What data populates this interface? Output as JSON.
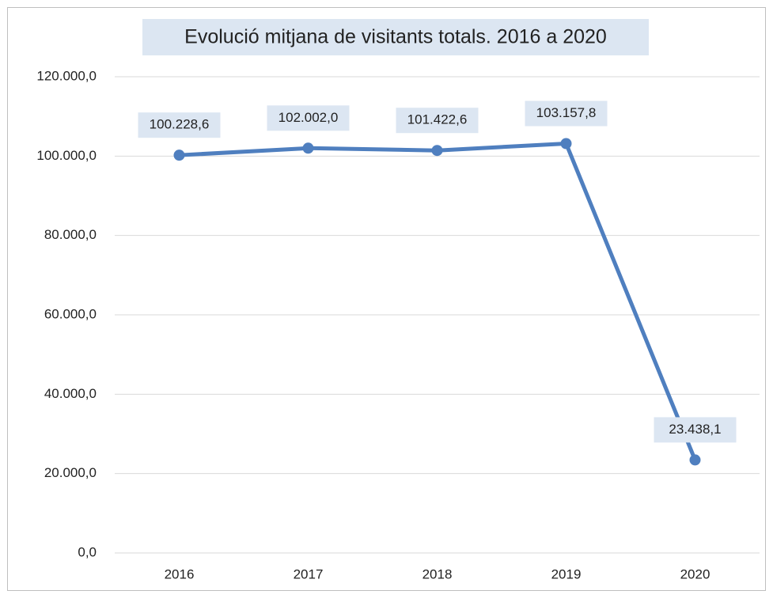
{
  "chart_data": {
    "type": "line",
    "title": "Evolució mitjana de visitants totals. 2016 a 2020",
    "categories": [
      "2016",
      "2017",
      "2018",
      "2019",
      "2020"
    ],
    "values": [
      100228.6,
      102002.0,
      101422.6,
      103157.8,
      23438.1
    ],
    "value_labels": [
      "100.228,6",
      "102.002,0",
      "101.422,6",
      "103.157,8",
      "23.438,1"
    ],
    "color": "#4f7fbf",
    "ylim": [
      0,
      120000
    ],
    "yticks": [
      {
        "value": 0,
        "label": "0,0"
      },
      {
        "value": 20000,
        "label": "20.000,0"
      },
      {
        "value": 40000,
        "label": "40.000,0"
      },
      {
        "value": 60000,
        "label": "60.000,0"
      },
      {
        "value": 80000,
        "label": "80.000,0"
      },
      {
        "value": 100000,
        "label": "100.000,0"
      },
      {
        "value": 120000,
        "label": "120.000,0"
      }
    ],
    "grid": true
  }
}
